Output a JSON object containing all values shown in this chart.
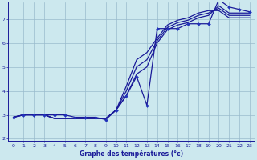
{
  "bg_color": "#cce8ee",
  "grid_color": "#99bbcc",
  "line_color": "#1a1a99",
  "marker_color": "#2233bb",
  "xlabel": "Graphe des températures (°c)",
  "xlim": [
    -0.5,
    23.5
  ],
  "ylim": [
    1.9,
    7.7
  ],
  "yticks": [
    2,
    3,
    4,
    5,
    6,
    7
  ],
  "xticks": [
    0,
    1,
    2,
    3,
    4,
    5,
    6,
    7,
    8,
    9,
    10,
    11,
    12,
    13,
    14,
    15,
    16,
    17,
    18,
    19,
    20,
    21,
    22,
    23
  ],
  "series": [
    {
      "x": [
        0,
        1,
        2,
        3,
        4,
        5,
        6,
        7,
        8,
        9,
        10,
        11,
        12,
        13,
        14,
        15,
        16,
        17,
        18,
        19,
        20,
        21,
        22,
        23
      ],
      "y": [
        2.9,
        3.0,
        3.0,
        3.0,
        3.0,
        3.0,
        2.9,
        2.9,
        2.9,
        2.8,
        3.2,
        3.8,
        4.6,
        3.4,
        6.6,
        6.6,
        6.6,
        6.8,
        6.8,
        6.8,
        7.8,
        7.5,
        7.4,
        7.3
      ],
      "marker": true
    },
    {
      "x": [
        0,
        1,
        2,
        3,
        4,
        5,
        6,
        7,
        8,
        9,
        10,
        11,
        12,
        13,
        14,
        15,
        16,
        17,
        18,
        19,
        20,
        21,
        22,
        23
      ],
      "y": [
        2.9,
        3.0,
        3.0,
        3.0,
        2.85,
        2.85,
        2.85,
        2.85,
        2.85,
        2.85,
        3.2,
        3.8,
        4.7,
        5.0,
        6.0,
        6.55,
        6.75,
        6.85,
        7.05,
        7.15,
        7.55,
        7.25,
        7.25,
        7.25
      ],
      "marker": false
    },
    {
      "x": [
        0,
        1,
        2,
        3,
        4,
        5,
        6,
        7,
        8,
        9,
        10,
        11,
        12,
        13,
        14,
        15,
        16,
        17,
        18,
        19,
        20,
        21,
        22,
        23
      ],
      "y": [
        2.9,
        3.0,
        3.0,
        3.0,
        2.85,
        2.85,
        2.85,
        2.85,
        2.85,
        2.85,
        3.2,
        4.0,
        5.0,
        5.3,
        6.1,
        6.65,
        6.85,
        6.95,
        7.15,
        7.25,
        7.45,
        7.15,
        7.15,
        7.15
      ],
      "marker": false
    },
    {
      "x": [
        0,
        1,
        2,
        3,
        4,
        5,
        6,
        7,
        8,
        9,
        10,
        11,
        12,
        13,
        14,
        15,
        16,
        17,
        18,
        19,
        20,
        21,
        22,
        23
      ],
      "y": [
        2.9,
        3.0,
        3.0,
        3.0,
        2.85,
        2.85,
        2.85,
        2.85,
        2.85,
        2.85,
        3.2,
        4.2,
        5.3,
        5.6,
        6.2,
        6.75,
        6.95,
        7.05,
        7.25,
        7.35,
        7.35,
        7.05,
        7.05,
        7.05
      ],
      "marker": false
    }
  ]
}
